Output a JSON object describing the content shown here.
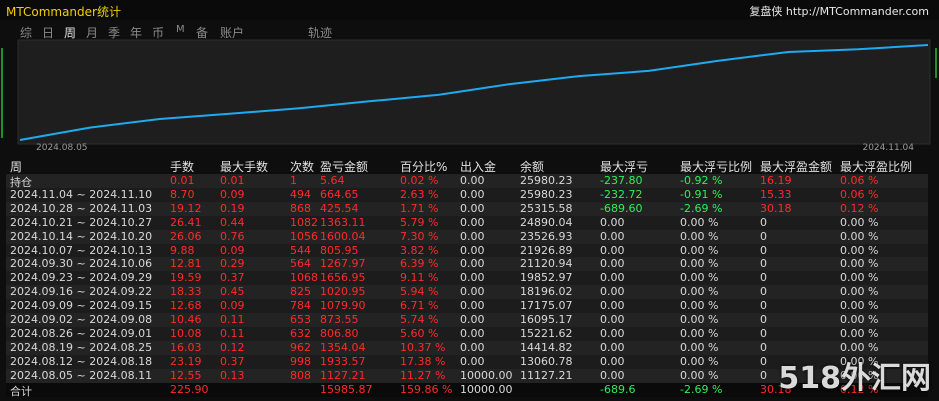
{
  "window": {
    "title": "MTCommander统计",
    "brand": "复盘侠 http://MTCommander.com"
  },
  "tabs": [
    "综",
    "日",
    "周",
    "月",
    "季",
    "年",
    "币",
    "M",
    "备",
    "账户",
    "轨迹"
  ],
  "chart": {
    "x_start": "2024.08.05",
    "x_end": "2024.11.04"
  },
  "table": {
    "columns": [
      "周",
      "手数",
      "最大手数",
      "次数",
      "盈亏金额",
      "百分比%",
      "出入金",
      "余额",
      "最大浮亏",
      "最大浮亏比例",
      "最大浮盈金额",
      "最大浮盈比例"
    ],
    "rows": [
      [
        "持仓",
        "0.01",
        "0.01",
        "1",
        "5.64",
        "0.02 %",
        "0.00",
        "25980.23",
        "-237.80",
        "-0.92 %",
        "16.19",
        "0.06 %"
      ],
      [
        "2024.11.04 ~ 2024.11.10",
        "8.70",
        "0.09",
        "494",
        "664.65",
        "2.63 %",
        "0.00",
        "25980.23",
        "-232.72",
        "-0.91 %",
        "15.33",
        "0.06 %"
      ],
      [
        "2024.10.28 ~ 2024.11.03",
        "19.12",
        "0.19",
        "868",
        "425.54",
        "1.71 %",
        "0.00",
        "25315.58",
        "-689.60",
        "-2.69 %",
        "30.18",
        "0.12 %"
      ],
      [
        "2024.10.21 ~ 2024.10.27",
        "26.41",
        "0.44",
        "1082",
        "1363.11",
        "5.79 %",
        "0.00",
        "24890.04",
        "0.00",
        "0.00 %",
        "0",
        "0.00 %"
      ],
      [
        "2024.10.14 ~ 2024.10.20",
        "26.06",
        "0.76",
        "1056",
        "1600.04",
        "7.30 %",
        "0.00",
        "23526.93",
        "0.00",
        "0.00 %",
        "0",
        "0.00 %"
      ],
      [
        "2024.10.07 ~ 2024.10.13",
        "9.88",
        "0.09",
        "544",
        "805.95",
        "3.82 %",
        "0.00",
        "21926.89",
        "0.00",
        "0.00 %",
        "0",
        "0.00 %"
      ],
      [
        "2024.09.30 ~ 2024.10.06",
        "12.81",
        "0.29",
        "564",
        "1267.97",
        "6.39 %",
        "0.00",
        "21120.94",
        "0.00",
        "0.00 %",
        "0",
        "0.00 %"
      ],
      [
        "2024.09.23 ~ 2024.09.29",
        "19.59",
        "0.37",
        "1068",
        "1656.95",
        "9.11 %",
        "0.00",
        "19852.97",
        "0.00",
        "0.00 %",
        "0",
        "0.00 %"
      ],
      [
        "2024.09.16 ~ 2024.09.22",
        "18.33",
        "0.45",
        "825",
        "1020.95",
        "5.94 %",
        "0.00",
        "18196.02",
        "0.00",
        "0.00 %",
        "0",
        "0.00 %"
      ],
      [
        "2024.09.09 ~ 2024.09.15",
        "12.68",
        "0.09",
        "784",
        "1079.90",
        "6.71 %",
        "0.00",
        "17175.07",
        "0.00",
        "0.00 %",
        "0",
        "0.00 %"
      ],
      [
        "2024.09.02 ~ 2024.09.08",
        "10.46",
        "0.11",
        "653",
        "873.55",
        "5.74 %",
        "0.00",
        "16095.17",
        "0.00",
        "0.00 %",
        "0",
        "0.00 %"
      ],
      [
        "2024.08.26 ~ 2024.09.01",
        "10.08",
        "0.11",
        "632",
        "806.80",
        "5.60 %",
        "0.00",
        "15221.62",
        "0.00",
        "0.00 %",
        "0",
        "0.00 %"
      ],
      [
        "2024.08.19 ~ 2024.08.25",
        "16.03",
        "0.12",
        "962",
        "1354.04",
        "10.37 %",
        "0.00",
        "14414.82",
        "0.00",
        "0.00 %",
        "0",
        "0.00 %"
      ],
      [
        "2024.08.12 ~ 2024.08.18",
        "23.19",
        "0.37",
        "998",
        "1933.57",
        "17.38 %",
        "0.00",
        "13060.78",
        "0.00",
        "0.00 %",
        "0",
        "0.00 %"
      ],
      [
        "2024.08.05 ~ 2024.08.11",
        "12.55",
        "0.13",
        "808",
        "1127.21",
        "11.27 %",
        "10000.00",
        "11127.21",
        "0.00",
        "0.00 %",
        "0",
        "0.00 %"
      ]
    ],
    "total": [
      "合计",
      "225.90",
      null,
      null,
      "15985.87",
      "159.86 %",
      "10000.00",
      null,
      "-689.6",
      "-2.69 %",
      "30.18",
      "0.12 %"
    ]
  },
  "watermark": "518外汇网"
}
